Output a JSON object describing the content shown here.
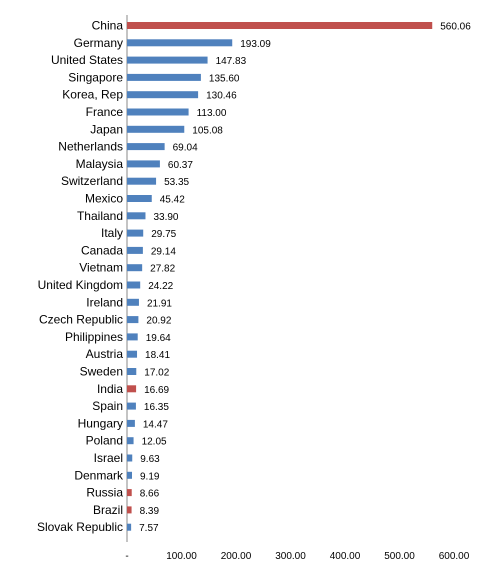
{
  "chart_data": {
    "type": "bar",
    "orientation": "horizontal",
    "title": "",
    "xlabel": "",
    "ylabel": "",
    "xlim": [
      0,
      600
    ],
    "grid": false,
    "legend": "none",
    "categories": [
      "China",
      "Germany",
      "United States",
      "Singapore",
      "Korea, Rep",
      "France",
      "Japan",
      "Netherlands",
      "Malaysia",
      "Switzerland",
      "Mexico",
      "Thailand",
      "Italy",
      "Canada",
      "Vietnam",
      "United Kingdom",
      "Ireland",
      "Czech Republic",
      "Philippines",
      "Austria",
      "Sweden",
      "India",
      "Spain",
      "Hungary",
      "Poland",
      "Israel",
      "Denmark",
      "Russia",
      "Brazil",
      "Slovak Republic"
    ],
    "values": [
      560.06,
      193.09,
      147.83,
      135.6,
      130.46,
      113.0,
      105.08,
      69.04,
      60.37,
      53.35,
      45.42,
      33.9,
      29.75,
      29.14,
      27.82,
      24.22,
      21.91,
      20.92,
      19.64,
      18.41,
      17.02,
      16.69,
      16.35,
      14.47,
      12.05,
      9.63,
      9.19,
      8.66,
      8.39,
      7.57
    ],
    "value_labels": [
      "560.06",
      "193.09",
      "147.83",
      "135.60",
      "130.46",
      "113.00",
      "105.08",
      "69.04",
      "60.37",
      "53.35",
      "45.42",
      "33.90",
      "29.75",
      "29.14",
      "27.82",
      "24.22",
      "21.91",
      "20.92",
      "19.64",
      "18.41",
      "17.02",
      "16.69",
      "16.35",
      "14.47",
      "12.05",
      "9.63",
      "9.19",
      "8.66",
      "8.39",
      "7.57"
    ],
    "highlighted": [
      "China",
      "India",
      "Russia",
      "Brazil"
    ],
    "x_ticks": [
      0,
      100,
      200,
      300,
      400,
      500,
      600
    ],
    "x_tick_labels": [
      "-",
      "100.00",
      "200.00",
      "300.00",
      "400.00",
      "500.00",
      "600.00"
    ],
    "colors": {
      "default": "#4f81bd",
      "highlight": "#c0504d"
    }
  }
}
